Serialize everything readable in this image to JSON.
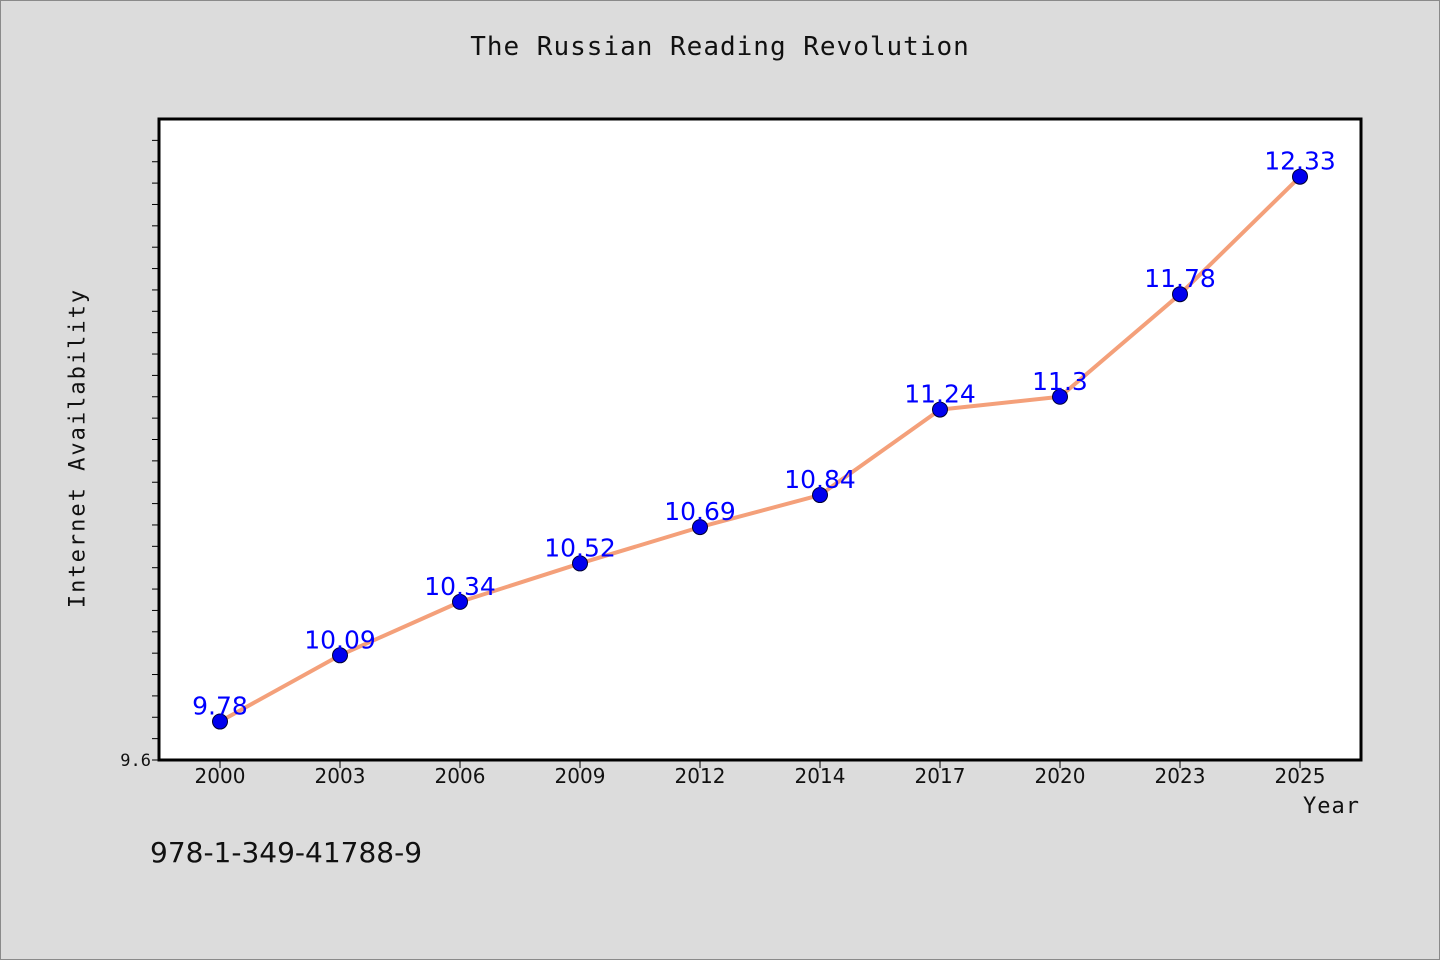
{
  "chart_data": {
    "type": "line",
    "title": "The Russian Reading Revolution",
    "xlabel": "Year",
    "ylabel": "Internet Availability",
    "categories": [
      "2000",
      "2003",
      "2006",
      "2009",
      "2012",
      "2014",
      "2017",
      "2020",
      "2023",
      "2025"
    ],
    "series": [
      {
        "values": [
          9.78,
          10.09,
          10.34,
          10.52,
          10.69,
          10.84,
          11.24,
          11.3,
          11.78,
          12.33
        ],
        "labels": [
          "9.78",
          "10.09",
          "10.34",
          "10.52",
          "10.69",
          "10.84",
          "11.24",
          "11.3",
          "11.78",
          "12.33"
        ],
        "line_color": "#f4a07a",
        "marker_color": "#0000ee",
        "label_color": "#0000ff"
      }
    ],
    "y_tick_labels": [
      "9.6"
    ],
    "ylim": [
      9.6,
      12.6
    ],
    "grid": false,
    "legend": "none"
  },
  "footer": {
    "isbn": "978-1-349-41788-9"
  }
}
